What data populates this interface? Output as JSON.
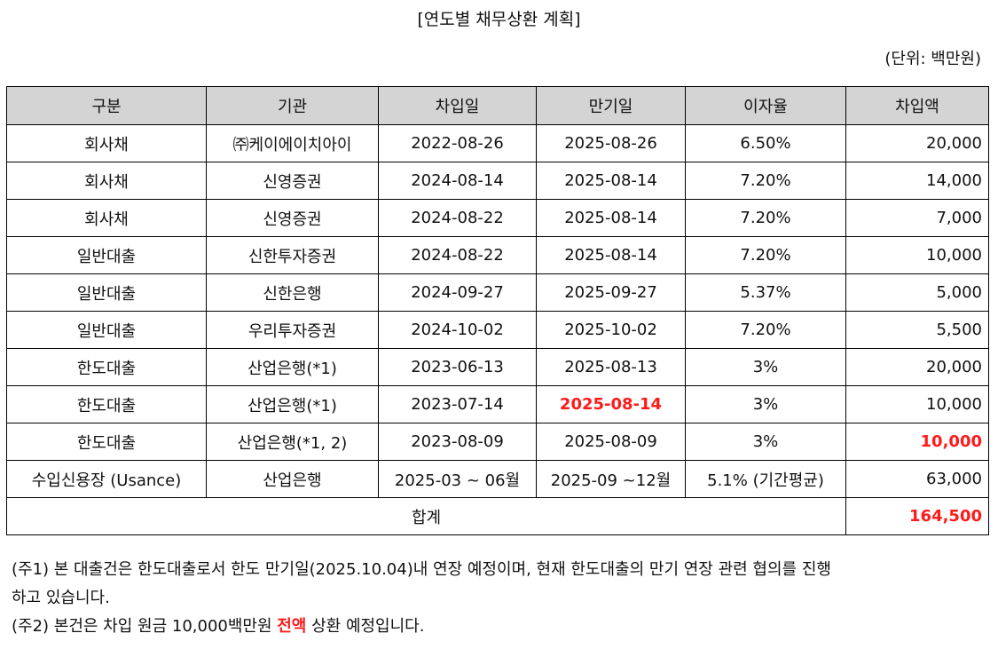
{
  "title": "[연도별 채무상환 계획]",
  "unit": "(단위: 백만원)",
  "table": {
    "headers": [
      "구분",
      "기관",
      "차입일",
      "만기일",
      "이자율",
      "차입액"
    ],
    "rows": [
      {
        "category": "회사채",
        "institution": "㈜케이에이치아이",
        "borrow_date": "2022-08-26",
        "maturity_date": "2025-08-26",
        "rate": "6.50%",
        "amount": "20,000"
      },
      {
        "category": "회사채",
        "institution": "신영증권",
        "borrow_date": "2024-08-14",
        "maturity_date": "2025-08-14",
        "rate": "7.20%",
        "amount": "14,000"
      },
      {
        "category": "회사채",
        "institution": "신영증권",
        "borrow_date": "2024-08-22",
        "maturity_date": "2025-08-14",
        "rate": "7.20%",
        "amount": "7,000"
      },
      {
        "category": "일반대출",
        "institution": "신한투자증권",
        "borrow_date": "2024-08-22",
        "maturity_date": "2025-08-14",
        "rate": "7.20%",
        "amount": "10,000"
      },
      {
        "category": "일반대출",
        "institution": "신한은행",
        "borrow_date": "2024-09-27",
        "maturity_date": "2025-09-27",
        "rate": "5.37%",
        "amount": "5,000"
      },
      {
        "category": "일반대출",
        "institution": "우리투자증권",
        "borrow_date": "2024-10-02",
        "maturity_date": "2025-10-02",
        "rate": "7.20%",
        "amount": "5,500"
      },
      {
        "category": "한도대출",
        "institution": "산업은행(*1)",
        "borrow_date": "2023-06-13",
        "maturity_date": "2025-08-13",
        "rate": "3%",
        "amount": "20,000"
      },
      {
        "category": "한도대출",
        "institution": "산업은행(*1)",
        "borrow_date": "2023-07-14",
        "maturity_date": "2025-08-14",
        "rate": "3%",
        "amount": "10,000"
      },
      {
        "category": "한도대출",
        "institution": "산업은행(*1, 2)",
        "borrow_date": "2023-08-09",
        "maturity_date": "2025-08-09",
        "rate": "3%",
        "amount": "10,000"
      },
      {
        "category": "수입신용장 (Usance)",
        "institution": "산업은행",
        "borrow_date": "2025-03 ~ 06월",
        "maturity_date": "2025-09 ~12월",
        "rate": "5.1% (기간평균)",
        "amount": "63,000"
      }
    ],
    "total_label": "합계",
    "total_amount": "164,500"
  },
  "notes": {
    "note1_line1": "(주1) 본 대출건은 한도대출로서 한도 만기일(2025.10.04)내 연장 예정이며, 현재 한도대출의 만기 연장 관련 협의를 진행",
    "note1_line2": "하고 있습니다.",
    "note2_before": "(주2) 본건은 차입 원금 10,000백만원 ",
    "note2_highlight": "전액",
    "note2_after": " 상환 예정입니다."
  },
  "colors": {
    "header_bg": "#d4d4d4",
    "highlight": "#ff1a1a",
    "border": "#000000"
  }
}
